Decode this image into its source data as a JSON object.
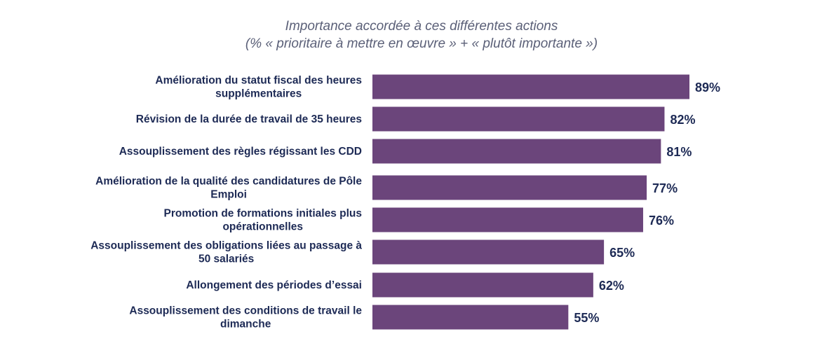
{
  "chart_data": {
    "type": "bar",
    "orientation": "horizontal",
    "title_lines": [
      "Importance accordée à ces différentes actions",
      "(% « prioritaire à mettre en œuvre » + « plutôt importante »)"
    ],
    "categories": [
      [
        "Amélioration du statut fiscal des heures",
        "supplémentaires"
      ],
      [
        "Révision de la durée de travail de 35 heures"
      ],
      [
        "Assouplissement des règles régissant les CDD"
      ],
      [
        "Amélioration de la qualité des candidatures de Pôle",
        "Emploi"
      ],
      [
        "Promotion de formations initiales plus",
        "opérationnelles"
      ],
      [
        "Assouplissement des obligations liées au passage à",
        "50 salariés"
      ],
      [
        "Allongement des périodes d’essai"
      ],
      [
        "Assouplissement des conditions de travail le",
        "dimanche"
      ]
    ],
    "values": [
      89,
      82,
      81,
      77,
      76,
      65,
      62,
      55
    ],
    "value_labels": [
      "89%",
      "82%",
      "81%",
      "77%",
      "76%",
      "65%",
      "62%",
      "55%"
    ],
    "value_unit": "%",
    "xlim": [
      0,
      100
    ],
    "grid": false,
    "legend": "none",
    "colors": {
      "bar": "#6b457b",
      "label": "#1d2a55",
      "title": "#5b6078"
    }
  }
}
